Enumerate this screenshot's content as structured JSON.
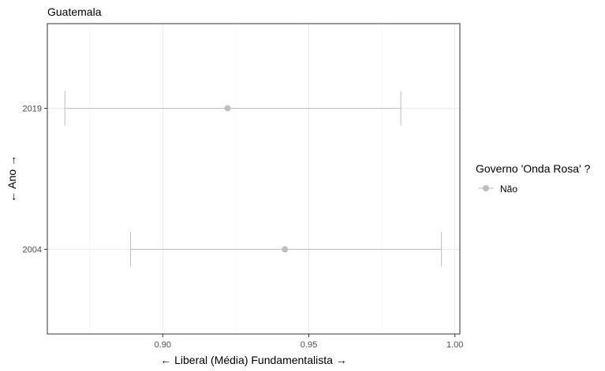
{
  "chart_data": {
    "type": "scatter",
    "title": "Guatemala",
    "xlabel": "← Liberal (Média) Fundamentalista →",
    "ylabel": "← Ano →",
    "xlim": [
      0.8605,
      1.0017
    ],
    "x_ticks": [
      0.9,
      0.95,
      1.0
    ],
    "x_tick_labels": [
      "0.90",
      "0.95",
      "1.00"
    ],
    "categories": [
      "2004",
      "2019"
    ],
    "grid": true,
    "legend": {
      "title": "Governo 'Onda Rosa' ?",
      "position": "right",
      "entries": [
        {
          "label": "Não",
          "color": "#bebebe"
        }
      ]
    },
    "series": [
      {
        "name": "Não",
        "color": "#bebebe",
        "points": [
          {
            "y": "2019",
            "x": 0.9222,
            "low": 0.8665,
            "high": 0.9815
          },
          {
            "y": "2004",
            "x": 0.9418,
            "low": 0.889,
            "high": 0.9954
          }
        ]
      }
    ]
  }
}
